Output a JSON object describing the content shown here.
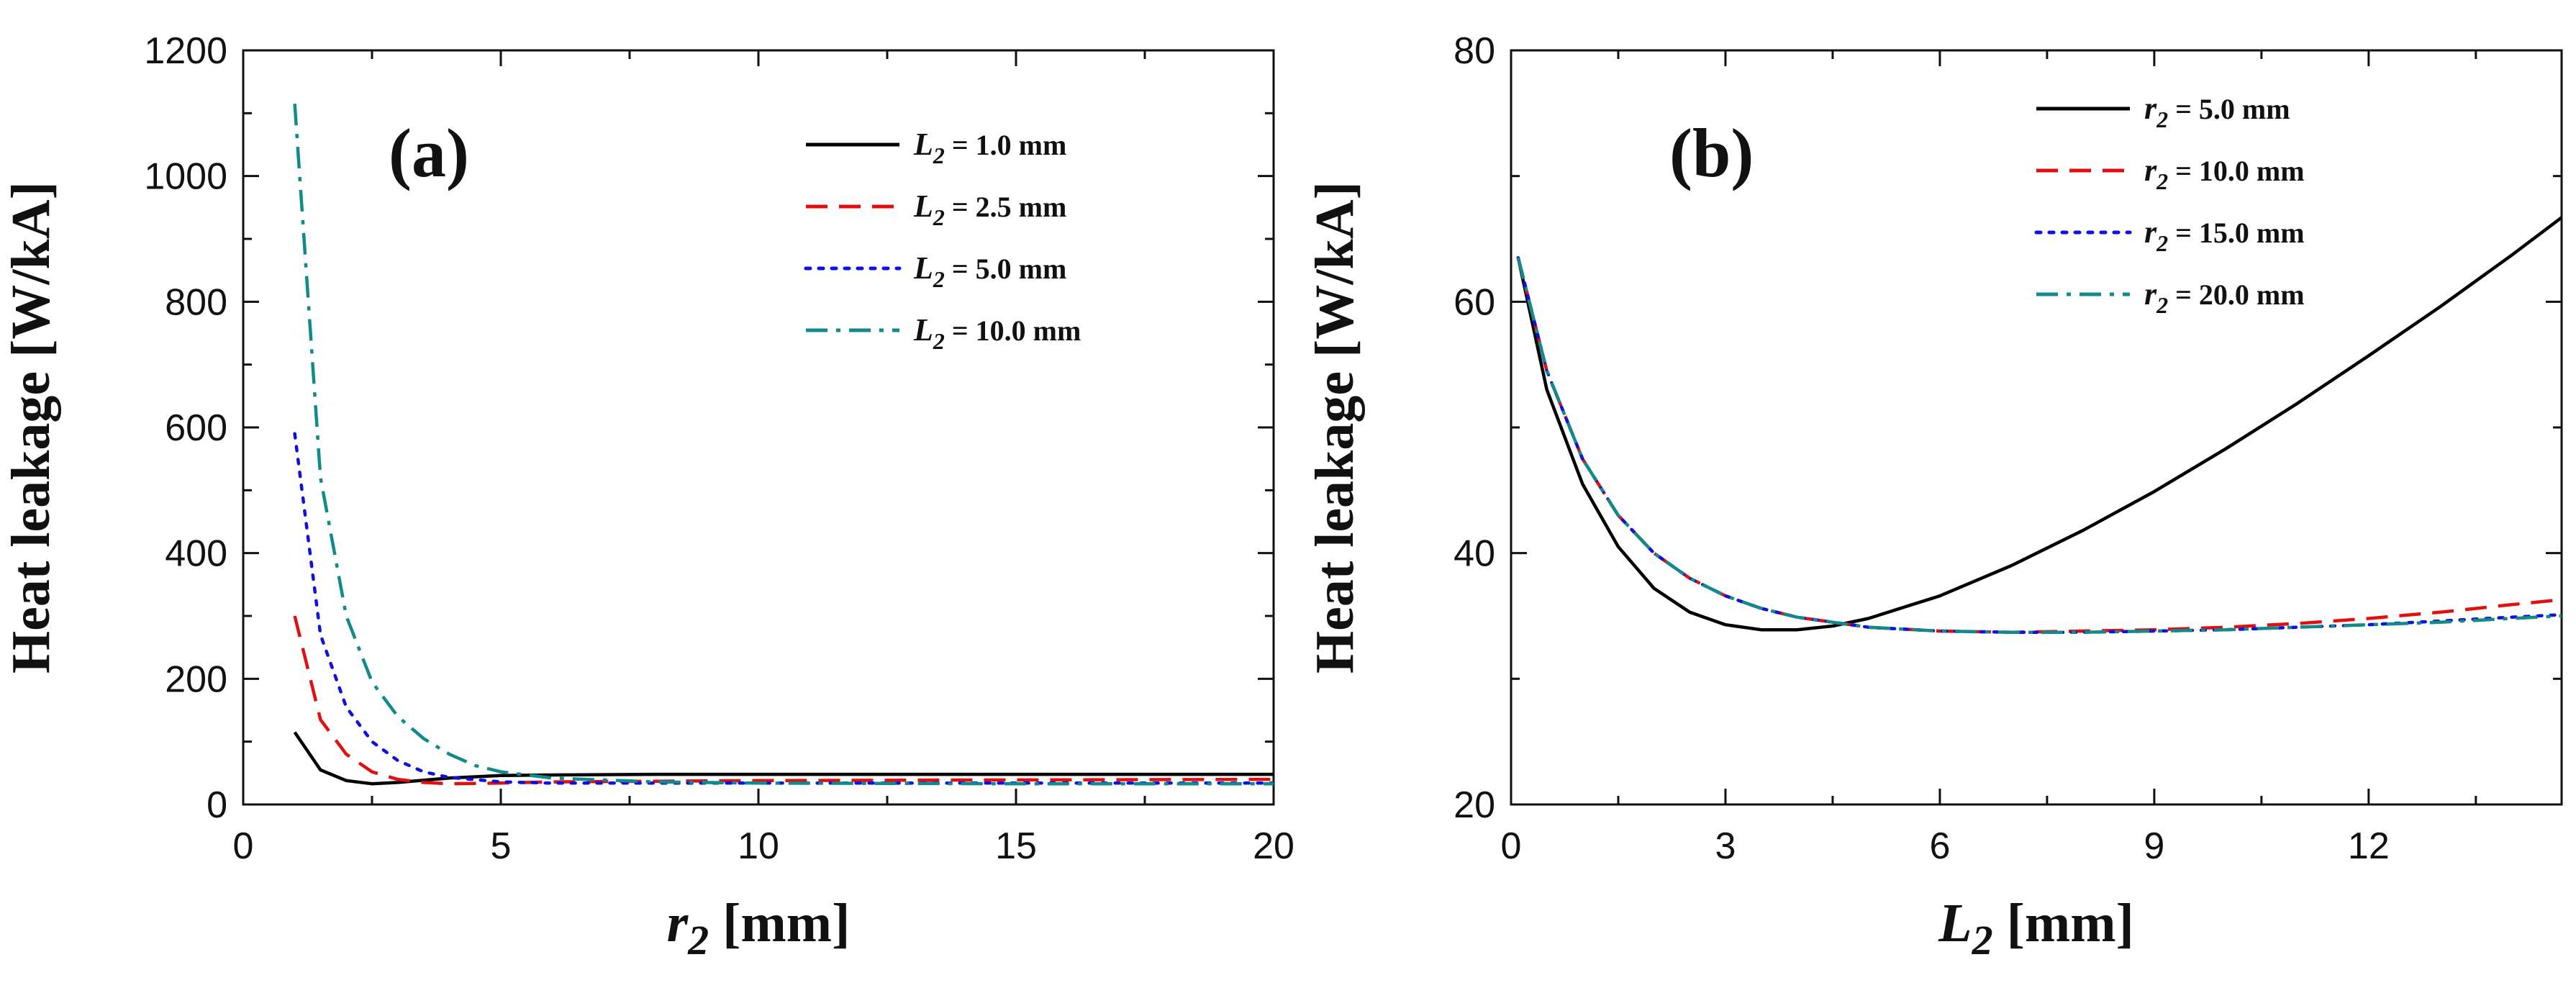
{
  "chart_data": [
    {
      "type": "line",
      "panel_label": "(a)",
      "xlabel": {
        "symbol": "r",
        "sub": "2",
        "unit": "[mm]"
      },
      "ylabel": "Heat leakage  [W/kA]",
      "xlim": [
        0,
        20
      ],
      "ylim": [
        0,
        1200
      ],
      "xticks": [
        0,
        5,
        10,
        15,
        20
      ],
      "yticks": [
        0,
        200,
        400,
        600,
        800,
        1000,
        1200
      ],
      "grid": false,
      "legend_position": "top-right",
      "series": [
        {
          "name": "L2 = 1.0 mm",
          "legend_symbol": "L",
          "legend_sub": "2",
          "legend_rest": " = 1.0 mm",
          "color": "#000000",
          "dash": "solid",
          "x": [
            1.0,
            1.5,
            2.0,
            2.5,
            3.0,
            4.0,
            5.0,
            6.0,
            8.0,
            10.0,
            15.0,
            20.0
          ],
          "y": [
            115,
            55,
            38,
            33,
            35,
            42,
            46,
            47,
            48,
            48,
            48,
            48
          ]
        },
        {
          "name": "L2 = 2.5 mm",
          "legend_symbol": "L",
          "legend_sub": "2",
          "legend_rest": " = 2.5 mm",
          "color": "#e01010",
          "dash": "dashed",
          "x": [
            1.0,
            1.5,
            2.0,
            2.5,
            3.0,
            3.5,
            4.0,
            5.0,
            6.0,
            8.0,
            10.0,
            15.0,
            20.0
          ],
          "y": [
            300,
            135,
            80,
            52,
            40,
            35,
            33,
            34,
            36,
            37,
            38,
            39,
            40
          ]
        },
        {
          "name": "L2 = 5.0 mm",
          "legend_symbol": "L",
          "legend_sub": "2",
          "legend_rest": " = 5.0 mm",
          "color": "#1010e0",
          "dash": "dotted",
          "x": [
            1.0,
            1.5,
            2.0,
            2.5,
            3.0,
            3.5,
            4.0,
            5.0,
            6.0,
            8.0,
            10.0,
            15.0,
            20.0
          ],
          "y": [
            590,
            270,
            155,
            100,
            70,
            52,
            43,
            36,
            34,
            34,
            34,
            34,
            34
          ]
        },
        {
          "name": "L2 = 10.0 mm",
          "legend_symbol": "L",
          "legend_sub": "2",
          "legend_rest": " = 10.0 mm",
          "color": "#138a8a",
          "dash": "dashdot",
          "x": [
            1.0,
            1.5,
            2.0,
            2.5,
            3.0,
            3.5,
            4.0,
            4.5,
            5.0,
            6.0,
            8.0,
            10.0,
            15.0,
            20.0
          ],
          "y": [
            1115,
            520,
            300,
            195,
            140,
            105,
            80,
            62,
            52,
            42,
            36,
            34,
            33,
            33
          ]
        }
      ]
    },
    {
      "type": "line",
      "panel_label": "(b)",
      "xlabel": {
        "symbol": "L",
        "sub": "2",
        "unit": "[mm]"
      },
      "ylabel": "Heat leakage  [W/kA]",
      "xlim": [
        0,
        14.7
      ],
      "ylim": [
        20,
        80
      ],
      "xticks": [
        0,
        3,
        6,
        9,
        12
      ],
      "yticks": [
        20,
        40,
        60,
        80
      ],
      "grid": false,
      "legend_position": "top-center",
      "series": [
        {
          "name": "r2 = 5.0 mm",
          "legend_symbol": "r",
          "legend_sub": "2",
          "legend_rest": " = 5.0 mm",
          "color": "#000000",
          "dash": "solid",
          "x": [
            0.1,
            0.5,
            1.0,
            1.5,
            2.0,
            2.5,
            3.0,
            3.5,
            4.0,
            4.5,
            5.0,
            6.0,
            7.0,
            8.0,
            9.0,
            10.0,
            11.0,
            12.0,
            13.0,
            14.0,
            14.7
          ],
          "y": [
            63.5,
            53.0,
            45.5,
            40.5,
            37.2,
            35.3,
            34.3,
            33.9,
            33.9,
            34.2,
            34.8,
            36.6,
            39.0,
            41.8,
            44.9,
            48.3,
            51.9,
            55.7,
            59.6,
            63.7,
            66.7
          ]
        },
        {
          "name": "r2 = 10.0 mm",
          "legend_symbol": "r",
          "legend_sub": "2",
          "legend_rest": " = 10.0 mm",
          "color": "#e01010",
          "dash": "dashed",
          "x": [
            0.1,
            0.5,
            1.0,
            1.5,
            2.0,
            2.5,
            3.0,
            3.5,
            4.0,
            5.0,
            6.0,
            7.0,
            8.0,
            9.0,
            10.0,
            11.0,
            12.0,
            13.0,
            14.0,
            14.7
          ],
          "y": [
            63.5,
            54.5,
            47.5,
            43.0,
            40.0,
            38.0,
            36.6,
            35.6,
            34.9,
            34.1,
            33.8,
            33.7,
            33.8,
            33.9,
            34.1,
            34.4,
            34.8,
            35.3,
            35.9,
            36.3
          ]
        },
        {
          "name": "r2 = 15.0 mm",
          "legend_symbol": "r",
          "legend_sub": "2",
          "legend_rest": " = 15.0 mm",
          "color": "#1010e0",
          "dash": "dotted",
          "x": [
            0.1,
            0.5,
            1.0,
            1.5,
            2.0,
            2.5,
            3.0,
            3.5,
            4.0,
            5.0,
            6.0,
            7.0,
            8.0,
            9.0,
            10.0,
            11.0,
            12.0,
            13.0,
            14.0,
            14.7
          ],
          "y": [
            63.5,
            54.5,
            47.5,
            43.0,
            40.0,
            38.0,
            36.6,
            35.6,
            34.9,
            34.1,
            33.8,
            33.7,
            33.7,
            33.8,
            33.9,
            34.1,
            34.3,
            34.6,
            34.9,
            35.1
          ]
        },
        {
          "name": "r2 = 20.0 mm",
          "legend_symbol": "r",
          "legend_sub": "2",
          "legend_rest": " = 20.0 mm",
          "color": "#138a8a",
          "dash": "dashdot",
          "x": [
            0.1,
            0.5,
            1.0,
            1.5,
            2.0,
            2.5,
            3.0,
            3.5,
            4.0,
            5.0,
            6.0,
            7.0,
            8.0,
            9.0,
            10.0,
            11.0,
            12.0,
            13.0,
            14.0,
            14.7
          ],
          "y": [
            63.5,
            54.5,
            47.5,
            43.0,
            40.0,
            38.0,
            36.6,
            35.6,
            34.9,
            34.1,
            33.8,
            33.7,
            33.7,
            33.8,
            33.9,
            34.1,
            34.3,
            34.5,
            34.8,
            35.0
          ]
        }
      ]
    }
  ]
}
